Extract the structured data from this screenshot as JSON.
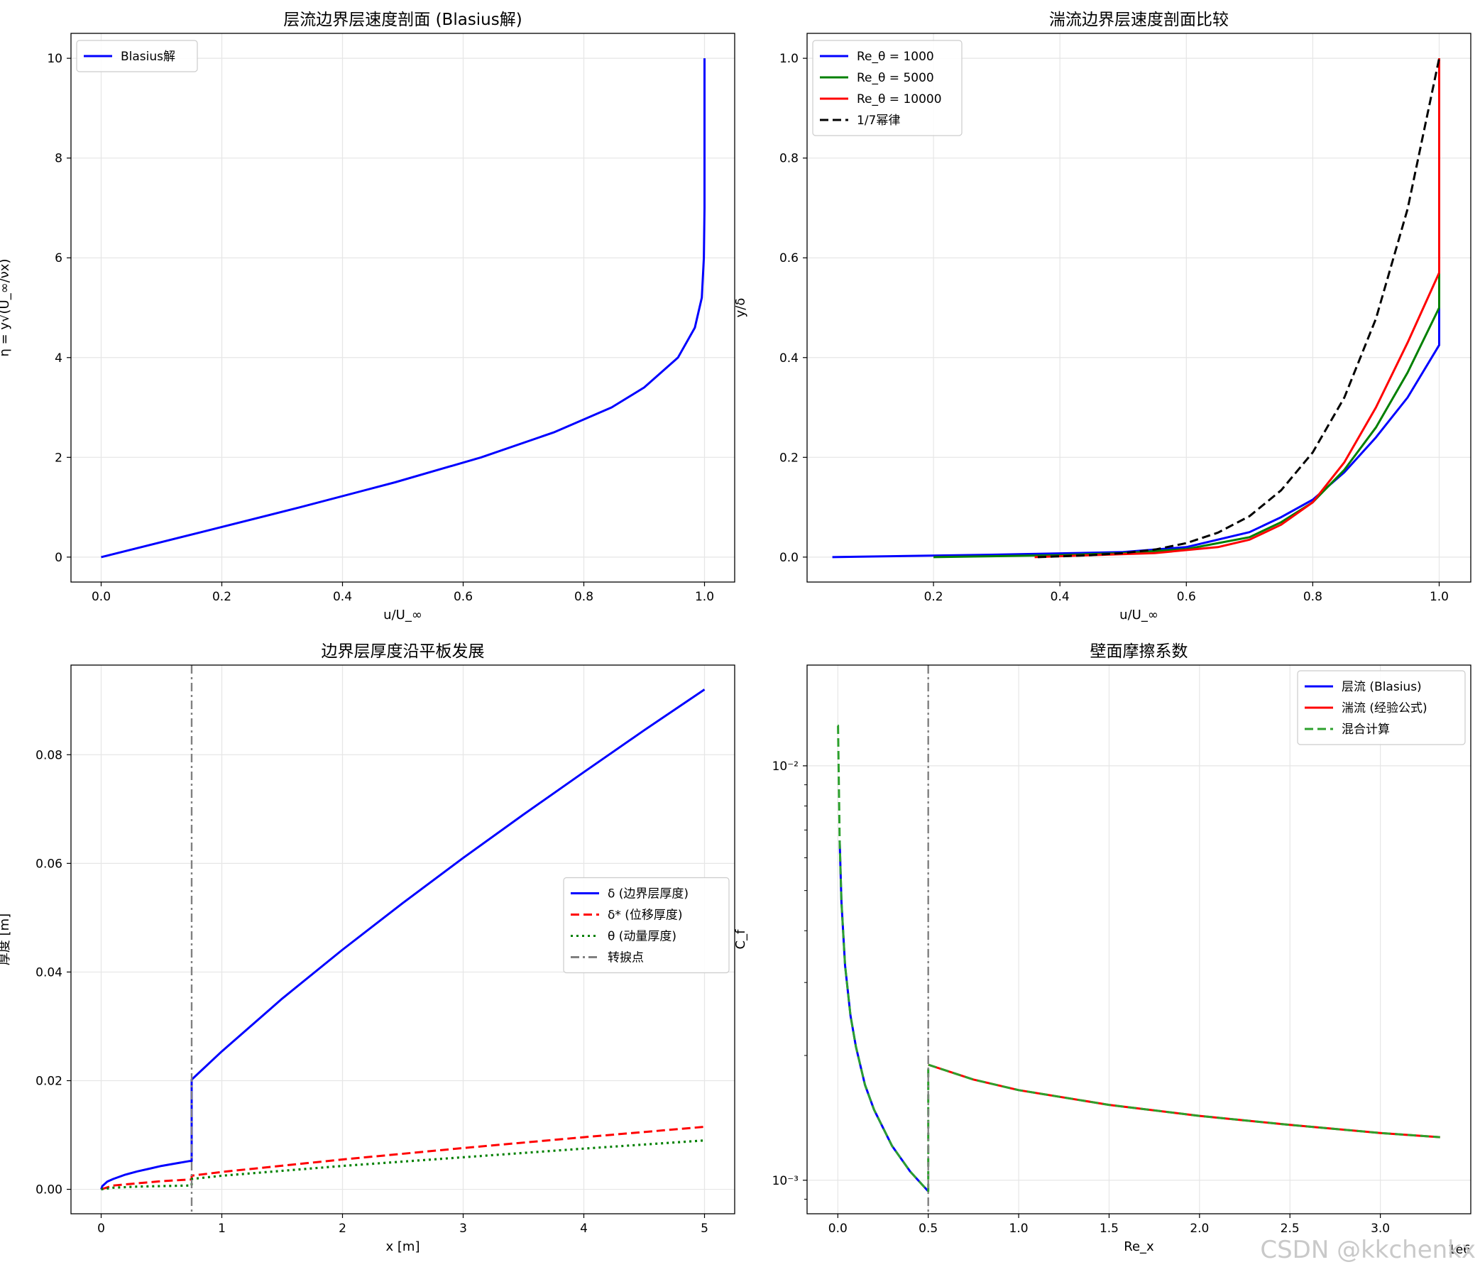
{
  "watermark": "CSDN @kkchenkx",
  "chart_data": [
    {
      "type": "line",
      "title": "层流边界层速度剖面 (Blasius解)",
      "xlabel": "u/U_∞",
      "ylabel": "η = y√(U_∞/νx)",
      "xlim": [
        -0.05,
        1.05
      ],
      "ylim": [
        -0.5,
        10.5
      ],
      "xticks": [
        0.0,
        0.2,
        0.4,
        0.6,
        0.8,
        1.0
      ],
      "xtick_labels": [
        "0.0",
        "0.2",
        "0.4",
        "0.6",
        "0.8",
        "1.0"
      ],
      "yticks": [
        0,
        2,
        4,
        6,
        8,
        10
      ],
      "ytick_labels": [
        "0",
        "2",
        "4",
        "6",
        "8",
        "10"
      ],
      "grid": true,
      "legend_position": "upper-left",
      "series": [
        {
          "name": "Blasius解",
          "color": "#0000ff",
          "style": "solid",
          "x": [
            0,
            0.166,
            0.33,
            0.487,
            0.63,
            0.75,
            0.846,
            0.9,
            0.956,
            0.984,
            0.9955,
            0.999,
            1.0,
            1.0
          ],
          "y": [
            0,
            0.5,
            1.0,
            1.5,
            2.0,
            2.5,
            3.0,
            3.4,
            4.0,
            4.6,
            5.2,
            6.0,
            7.0,
            10.0
          ]
        }
      ]
    },
    {
      "type": "line",
      "title": "湍流边界层速度剖面比较",
      "xlabel": "u/U_∞",
      "ylabel": "y/δ",
      "xlim": [
        0.0,
        1.05
      ],
      "ylim": [
        -0.05,
        1.05
      ],
      "xticks": [
        0.2,
        0.4,
        0.6,
        0.8,
        1.0
      ],
      "xtick_labels": [
        "0.2",
        "0.4",
        "0.6",
        "0.8",
        "1.0"
      ],
      "yticks": [
        0.0,
        0.2,
        0.4,
        0.6,
        0.8,
        1.0
      ],
      "ytick_labels": [
        "0.0",
        "0.2",
        "0.4",
        "0.6",
        "0.8",
        "1.0"
      ],
      "grid": true,
      "legend_position": "upper-left",
      "series": [
        {
          "name": "Re_θ = 1000",
          "color": "#0000ff",
          "style": "solid",
          "x": [
            0.04,
            0.3,
            0.5,
            0.6,
            0.7,
            0.75,
            0.8,
            0.85,
            0.9,
            0.95,
            1.0,
            1.0
          ],
          "y": [
            0.0,
            0.005,
            0.01,
            0.02,
            0.05,
            0.08,
            0.115,
            0.17,
            0.24,
            0.32,
            0.425,
            1.0
          ]
        },
        {
          "name": "Re_θ = 5000",
          "color": "#008000",
          "style": "solid",
          "x": [
            0.2,
            0.4,
            0.5,
            0.6,
            0.7,
            0.75,
            0.8,
            0.85,
            0.9,
            0.95,
            1.0,
            1.0
          ],
          "y": [
            0.0,
            0.004,
            0.008,
            0.016,
            0.04,
            0.07,
            0.11,
            0.175,
            0.26,
            0.37,
            0.5,
            1.0
          ]
        },
        {
          "name": "Re_θ = 10000",
          "color": "#ff0000",
          "style": "solid",
          "x": [
            0.36,
            0.45,
            0.55,
            0.65,
            0.7,
            0.75,
            0.8,
            0.85,
            0.9,
            0.95,
            1.0,
            1.0
          ],
          "y": [
            0.0,
            0.004,
            0.008,
            0.02,
            0.035,
            0.065,
            0.11,
            0.19,
            0.3,
            0.43,
            0.57,
            1.0
          ]
        },
        {
          "name": "1/7幂律",
          "color": "#000000",
          "style": "dashed",
          "x": [
            0.365,
            0.45,
            0.5,
            0.55,
            0.6,
            0.65,
            0.7,
            0.75,
            0.8,
            0.85,
            0.9,
            0.95,
            1.0
          ],
          "y": [
            0.0,
            0.004,
            0.008,
            0.015,
            0.028,
            0.049,
            0.082,
            0.134,
            0.21,
            0.32,
            0.478,
            0.698,
            1.0
          ]
        }
      ]
    },
    {
      "type": "line",
      "title": "边界层厚度沿平板发展",
      "xlabel": "x [m]",
      "ylabel": "厚度 [m]",
      "xlim": [
        -0.25,
        5.25
      ],
      "ylim": [
        -0.0045,
        0.0965
      ],
      "xticks": [
        0,
        1,
        2,
        3,
        4,
        5
      ],
      "xtick_labels": [
        "0",
        "1",
        "2",
        "3",
        "4",
        "5"
      ],
      "yticks": [
        0.0,
        0.02,
        0.04,
        0.06,
        0.08
      ],
      "ytick_labels": [
        "0.00",
        "0.02",
        "0.04",
        "0.06",
        "0.08"
      ],
      "grid": true,
      "legend_position": "center-right",
      "series": [
        {
          "name": "δ (边界层厚度)",
          "color": "#0000ff",
          "style": "solid",
          "x": [
            0.0,
            0.01,
            0.05,
            0.1,
            0.2,
            0.3,
            0.4,
            0.5,
            0.6,
            0.73,
            0.75,
            0.75,
            1.0,
            1.5,
            2.0,
            2.5,
            3.0,
            3.5,
            4.0,
            4.5,
            5.0
          ],
          "y": [
            0.0,
            0.0006,
            0.0014,
            0.0019,
            0.0027,
            0.0033,
            0.0038,
            0.0043,
            0.0047,
            0.0052,
            0.0052,
            0.0202,
            0.0254,
            0.0351,
            0.0441,
            0.0527,
            0.061,
            0.069,
            0.0768,
            0.0845,
            0.092
          ]
        },
        {
          "name": "δ* (位移厚度)",
          "color": "#ff0000",
          "style": "dashed",
          "x": [
            0.0,
            0.1,
            0.3,
            0.5,
            0.73,
            0.75,
            0.75,
            1.0,
            2.0,
            3.0,
            4.0,
            5.0
          ],
          "y": [
            0.0,
            0.0007,
            0.0011,
            0.0015,
            0.0018,
            0.0018,
            0.0025,
            0.0032,
            0.0055,
            0.0076,
            0.0096,
            0.0115
          ]
        },
        {
          "name": "θ (动量厚度)",
          "color": "#008000",
          "style": "dotted",
          "x": [
            0.0,
            0.1,
            0.3,
            0.5,
            0.73,
            0.75,
            0.75,
            1.0,
            2.0,
            3.0,
            4.0,
            5.0
          ],
          "y": [
            0.0,
            0.0003,
            0.0005,
            0.0006,
            0.0007,
            0.0007,
            0.0019,
            0.0025,
            0.0043,
            0.0059,
            0.0075,
            0.009
          ]
        },
        {
          "name": "转捩点",
          "color": "#808080",
          "style": "dashdot",
          "vline_x": 0.75
        }
      ]
    },
    {
      "type": "line",
      "title": "壁面摩擦系数",
      "xlabel": "Re_x",
      "ylabel": "C_f",
      "yscale": "log",
      "x_multiplier": "1e6",
      "xlim": [
        -0.17,
        3.5
      ],
      "ylim": [
        0.00083,
        0.0175
      ],
      "xticks": [
        0.0,
        0.5,
        1.0,
        1.5,
        2.0,
        2.5,
        3.0
      ],
      "xtick_labels": [
        "0.0",
        "0.5",
        "1.0",
        "1.5",
        "2.0",
        "2.5",
        "3.0"
      ],
      "yticks": [
        0.01,
        0.001
      ],
      "ytick_labels": [
        "10⁻²",
        "10⁻³"
      ],
      "grid": true,
      "legend_position": "upper-right",
      "series": [
        {
          "name": "层流 (Blasius)",
          "color": "#0000ff",
          "style": "solid",
          "x": [
            0.01,
            0.02,
            0.04,
            0.07,
            0.1,
            0.15,
            0.2,
            0.3,
            0.4,
            0.5
          ],
          "y": [
            0.0066,
            0.0047,
            0.0033,
            0.0025,
            0.0021,
            0.0017,
            0.00148,
            0.00121,
            0.00105,
            0.00094
          ]
        },
        {
          "name": "湍流 (经验公式)",
          "color": "#ff0000",
          "style": "solid",
          "x": [
            0.5,
            0.75,
            1.0,
            1.5,
            2.0,
            2.5,
            3.0,
            3.33
          ],
          "y": [
            0.0019,
            0.00175,
            0.00165,
            0.00152,
            0.00143,
            0.00136,
            0.0013,
            0.00127
          ]
        },
        {
          "name": "混合计算",
          "color": "#2ca02c",
          "style": "dashed",
          "x": [
            0.0,
            0.001,
            0.01,
            0.02,
            0.04,
            0.07,
            0.1,
            0.15,
            0.2,
            0.3,
            0.4,
            0.5,
            0.5,
            0.75,
            1.0,
            1.5,
            2.0,
            2.5,
            3.0,
            3.33
          ],
          "y": [
            0.0125,
            0.0125,
            0.0066,
            0.0047,
            0.0033,
            0.0025,
            0.0021,
            0.0017,
            0.00148,
            0.00121,
            0.00105,
            0.00094,
            0.0019,
            0.00175,
            0.00165,
            0.00152,
            0.00143,
            0.00136,
            0.0013,
            0.00127
          ]
        },
        {
          "name": "",
          "color": "#808080",
          "style": "dashdot",
          "vline_x": 0.5
        }
      ]
    }
  ]
}
